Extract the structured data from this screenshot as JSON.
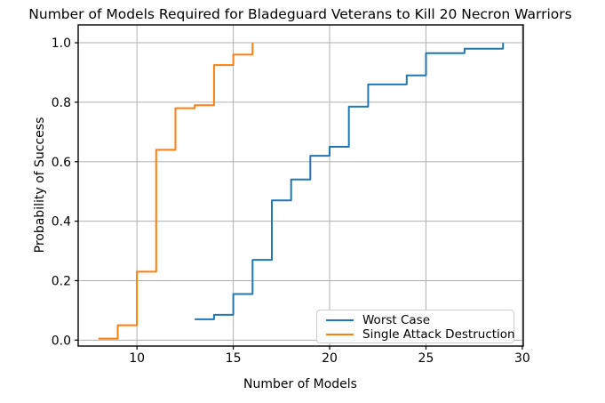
{
  "title": "Number of Models Required for Bladeguard Veterans to Kill 20 Necron Warriors",
  "chart_data": {
    "type": "line",
    "subtype": "step-post",
    "title": "Number of Models Required for Bladeguard Veterans to Kill 20 Necron Warriors",
    "xlabel": "Number of Models",
    "ylabel": "Probability of Success",
    "xlim": [
      6.95,
      30.05
    ],
    "ylim": [
      -0.02,
      1.06
    ],
    "grid": true,
    "grid_color": "#b0b0b0",
    "spine_color": "#000000",
    "legend_position": "lower right",
    "x_ticks": [
      10,
      15,
      20,
      25,
      30
    ],
    "x_tick_labels": [
      "10",
      "15",
      "20",
      "25",
      "30"
    ],
    "y_ticks": [
      0.0,
      0.2,
      0.4,
      0.6,
      0.8,
      1.0
    ],
    "y_tick_labels": [
      "0.0",
      "0.2",
      "0.4",
      "0.6",
      "0.8",
      "1.0"
    ],
    "series": [
      {
        "name": "Worst Case",
        "color": "#1f77b4",
        "x": [
          13,
          14,
          15,
          16,
          17,
          18,
          19,
          20,
          21,
          22,
          24,
          25,
          27,
          29
        ],
        "y": [
          0.07,
          0.085,
          0.155,
          0.27,
          0.47,
          0.54,
          0.62,
          0.65,
          0.785,
          0.86,
          0.89,
          0.965,
          0.98,
          1.0
        ]
      },
      {
        "name": "Single Attack Destruction",
        "color": "#ff7f0e",
        "x": [
          8,
          9,
          10,
          11,
          12,
          13,
          14,
          15,
          16
        ],
        "y": [
          0.005,
          0.05,
          0.23,
          0.64,
          0.78,
          0.79,
          0.925,
          0.96,
          1.0
        ]
      }
    ]
  },
  "legend": {
    "entries": [
      {
        "label": "Worst Case"
      },
      {
        "label": "Single Attack Destruction"
      }
    ]
  }
}
